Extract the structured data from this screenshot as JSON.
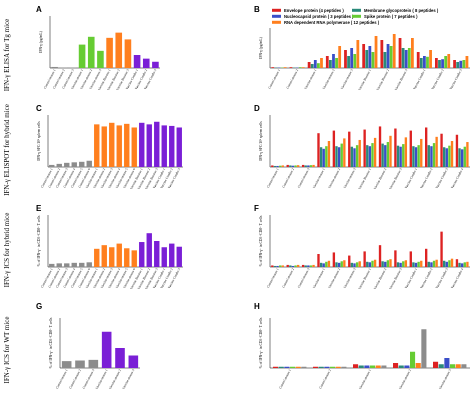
{
  "row_labels": [
    "IFN-γ ELISA for Tg mice",
    "IFN-γ ELISPOT for hybrid mice",
    "IFN-γ ICS for hybrid mice",
    "IFN-γ ICS for WT mice"
  ],
  "panel_letters": [
    "A",
    "B",
    "C",
    "D",
    "E",
    "F",
    "G",
    "H"
  ],
  "colors": {
    "grey": "#8c8c8c",
    "green": "#66cc33",
    "orange": "#ff7f1e",
    "purple": "#7a1fd6",
    "red": "#dd2222",
    "teal": "#2a8a7a",
    "blue": "#3a4ec8",
    "yellow": "#d8c000"
  },
  "legend": {
    "items": [
      {
        "label": "Envelope protein (4 peptides )",
        "color": "#dd2222"
      },
      {
        "label": "Membrane glycoprotein ( 8 peptides )",
        "color": "#2a8a7a"
      },
      {
        "label": "Nucleocapsid protein ( 3 peptides )",
        "color": "#3a4ec8"
      },
      {
        "label": "Spike protein ( 7 peptides )",
        "color": "#66cc33"
      },
      {
        "label": "RNA dependent RNA polymerase ( 12 peptides )",
        "color": "#ff7f1e"
      }
    ]
  },
  "chart_data": [
    {
      "id": "A",
      "type": "bar",
      "ylabel": "IFN-γ (pg/mL)",
      "ylim": [
        0,
        100
      ],
      "categories": [
        "Control-mouse 1",
        "Control-mouse 2",
        "Control-mouse 3",
        "Vaccine-mouse 1",
        "Vaccine-mouse 2",
        "Vaccine-mouse 3",
        "Vaccine Booster 1",
        "Vaccine Booster 2",
        "Vaccine Booster 3",
        "Vaccine Combo 1",
        "Vaccine Combo 2",
        "Vaccine Combo 3"
      ],
      "values": [
        2,
        1,
        1,
        45,
        60,
        33,
        58,
        68,
        55,
        25,
        18,
        12
      ],
      "bar_colors": [
        "grey",
        "grey",
        "grey",
        "green",
        "green",
        "green",
        "orange",
        "orange",
        "orange",
        "purple",
        "purple",
        "purple"
      ]
    },
    {
      "id": "B",
      "type": "bar",
      "ylabel": "IFN-γ (pg/mL)",
      "ylim": [
        0,
        100
      ],
      "categories": [
        "Control-mouse 1",
        "Control-mouse 2",
        "Vaccine-mouse 1",
        "Vaccine-mouse 2",
        "Vaccine-mouse 3",
        "Vaccine Booster 1",
        "Vaccine Booster 2",
        "Vaccine Booster 3",
        "Vaccine Combo 1",
        "Vaccine Combo 2",
        "Vaccine Combo 3"
      ],
      "series": [
        {
          "name": "Envelope protein (4 peptides )",
          "color": "red",
          "values": [
            2,
            2,
            15,
            30,
            45,
            60,
            70,
            75,
            40,
            25,
            20
          ]
        },
        {
          "name": "Membrane glycoprotein ( 8 peptides )",
          "color": "teal",
          "values": [
            1,
            1,
            10,
            20,
            30,
            45,
            40,
            50,
            25,
            20,
            15
          ]
        },
        {
          "name": "Nucleocapsid protein ( 3 peptides )",
          "color": "blue",
          "values": [
            1,
            1,
            20,
            35,
            50,
            55,
            60,
            45,
            30,
            22,
            18
          ]
        },
        {
          "name": "Spike protein ( 7 peptides )",
          "color": "green",
          "values": [
            1,
            2,
            12,
            25,
            35,
            40,
            55,
            50,
            28,
            30,
            20
          ]
        },
        {
          "name": "RNA dependent RNA polymerase ( 12 peptides )",
          "color": "orange",
          "values": [
            2,
            2,
            25,
            55,
            70,
            80,
            85,
            75,
            45,
            35,
            30
          ]
        }
      ]
    },
    {
      "id": "C",
      "type": "bar",
      "ylabel": "IFN-γ SFC/10⁶ spleen cells",
      "ylim": [
        0,
        1000
      ],
      "categories": [
        "Control-mouse 1",
        "Control-mouse 2",
        "Control-mouse 3",
        "Control-mouse 4",
        "Control-mouse 5",
        "Control-mouse 6",
        "Vaccine-mouse 1",
        "Vaccine-mouse 2",
        "Vaccine-mouse 3",
        "Vaccine-mouse 4",
        "Vaccine-mouse 5",
        "Vaccine-mouse 6",
        "Vaccine Booster 1",
        "Vaccine Booster 2",
        "Vaccine Booster 3",
        "Vaccine Combo 1",
        "Vaccine Combo 2",
        "Vaccine Combo 3"
      ],
      "values": [
        40,
        60,
        80,
        90,
        100,
        120,
        820,
        780,
        850,
        800,
        830,
        760,
        850,
        820,
        870,
        800,
        790,
        760
      ],
      "bar_colors": [
        "grey",
        "grey",
        "grey",
        "grey",
        "grey",
        "grey",
        "orange",
        "orange",
        "orange",
        "orange",
        "orange",
        "orange",
        "purple",
        "purple",
        "purple",
        "purple",
        "purple",
        "purple"
      ]
    },
    {
      "id": "D",
      "type": "bar",
      "ylabel": "IFN-γ SFC/10⁶ spleen cells",
      "ylim": [
        0,
        1000
      ],
      "categories": [
        "Control-mouse 1",
        "Control-mouse 2",
        "Control-mouse 3",
        "Vaccine-mouse 1",
        "Vaccine-mouse 2",
        "Vaccine-mouse 3",
        "Vaccine Booster 1",
        "Vaccine Booster 2",
        "Vaccine Booster 3",
        "Vaccine Combo 1",
        "Vaccine Combo 2",
        "Vaccine Combo 3",
        "Vaccine Combo 4"
      ],
      "series": [
        {
          "name": "Envelope protein (4 peptides )",
          "color": "red",
          "values": [
            30,
            40,
            40,
            650,
            700,
            680,
            720,
            780,
            740,
            700,
            760,
            640,
            620
          ]
        },
        {
          "name": "Membrane glycoprotein ( 8 peptides )",
          "color": "teal",
          "values": [
            20,
            30,
            30,
            380,
            400,
            390,
            420,
            450,
            410,
            400,
            420,
            380,
            360
          ]
        },
        {
          "name": "Nucleocapsid protein ( 3 peptides )",
          "color": "blue",
          "values": [
            20,
            25,
            30,
            350,
            380,
            360,
            400,
            420,
            390,
            380,
            400,
            360,
            340
          ]
        },
        {
          "name": "Spike protein ( 7 peptides )",
          "color": "green",
          "values": [
            25,
            30,
            35,
            400,
            450,
            420,
            460,
            480,
            440,
            420,
            460,
            410,
            390
          ]
        },
        {
          "name": "RNA dependent RNA polymerase ( 12 peptides )",
          "color": "orange",
          "values": [
            30,
            35,
            40,
            500,
            550,
            520,
            560,
            600,
            570,
            540,
            580,
            500,
            480
          ]
        }
      ]
    },
    {
      "id": "E",
      "type": "bar",
      "ylabel": "% of IFN-γ⁺ in CD3⁺CD8⁺ T cells",
      "ylim": [
        0,
        10
      ],
      "categories": [
        "Control-mouse 1",
        "Control-mouse 2",
        "Control-mouse 3",
        "Control-mouse 4",
        "Control-mouse 5",
        "Control-mouse 6",
        "Vaccine-mouse 1",
        "Vaccine-mouse 2",
        "Vaccine-mouse 3",
        "Vaccine-mouse 4",
        "Vaccine-mouse 5",
        "Vaccine-mouse 6",
        "Vaccine Booster 1",
        "Vaccine Booster 2",
        "Vaccine Booster 3",
        "Vaccine Combo 1",
        "Vaccine Combo 2",
        "Vaccine Combo 3"
      ],
      "values": [
        0.6,
        0.7,
        0.7,
        0.8,
        0.8,
        0.9,
        3.5,
        4.2,
        3.8,
        4.5,
        3.6,
        3.2,
        4.8,
        6.5,
        5.0,
        3.8,
        4.5,
        3.9
      ],
      "bar_colors": [
        "grey",
        "grey",
        "grey",
        "grey",
        "grey",
        "grey",
        "orange",
        "orange",
        "orange",
        "orange",
        "orange",
        "orange",
        "purple",
        "purple",
        "purple",
        "purple",
        "purple",
        "purple"
      ]
    },
    {
      "id": "F",
      "type": "bar",
      "ylabel": "% of IFN-γ⁺ in CD3⁺CD8⁺ T cells",
      "ylim": [
        0,
        10
      ],
      "categories": [
        "Control-mouse 1",
        "Control-mouse 2",
        "Control-mouse 3",
        "Vaccine-mouse 1",
        "Vaccine-mouse 2",
        "Vaccine-mouse 3",
        "Vaccine Booster 1",
        "Vaccine Booster 2",
        "Vaccine Booster 3",
        "Vaccine Combo 1",
        "Vaccine Combo 2",
        "Vaccine Combo 3",
        "Vaccine Combo 4"
      ],
      "series": [
        {
          "name": "Envelope protein (4 peptides )",
          "color": "red",
          "values": [
            0.3,
            0.4,
            0.4,
            2.5,
            2.8,
            2.2,
            3.0,
            4.2,
            3.2,
            3.0,
            3.5,
            6.8,
            1.5
          ]
        },
        {
          "name": "Membrane glycoprotein ( 8 peptides )",
          "color": "teal",
          "values": [
            0.2,
            0.3,
            0.3,
            0.8,
            0.9,
            0.8,
            1.0,
            1.1,
            0.9,
            0.9,
            1.0,
            1.2,
            0.8
          ]
        },
        {
          "name": "Nucleocapsid protein ( 3 peptides )",
          "color": "blue",
          "values": [
            0.2,
            0.2,
            0.3,
            0.7,
            0.8,
            0.7,
            0.9,
            1.0,
            0.8,
            0.8,
            0.9,
            1.0,
            0.7
          ]
        },
        {
          "name": "Spike protein ( 7 peptides )",
          "color": "green",
          "values": [
            0.3,
            0.3,
            0.3,
            1.0,
            1.1,
            0.9,
            1.2,
            1.3,
            1.1,
            1.0,
            1.2,
            1.3,
            0.9
          ]
        },
        {
          "name": "RNA dependent RNA polymerase ( 12 peptides )",
          "color": "orange",
          "values": [
            0.3,
            0.4,
            0.4,
            1.2,
            1.3,
            1.1,
            1.4,
            1.5,
            1.3,
            1.2,
            1.4,
            1.6,
            1.0
          ]
        }
      ]
    },
    {
      "id": "G",
      "type": "bar",
      "ylabel": "% of IFN-γ⁺ in CD3⁺CD8⁺ T cells",
      "ylim": [
        0,
        4
      ],
      "categories": [
        "Control-mouse 1",
        "Control-mouse 2",
        "Control-mouse 3",
        "Vaccine-mouse 1",
        "Vaccine-mouse 2",
        "Vaccine-mouse 3"
      ],
      "values": [
        0.55,
        0.6,
        0.65,
        2.9,
        1.6,
        1.0
      ],
      "bar_colors": [
        "grey",
        "grey",
        "grey",
        "purple",
        "purple",
        "purple"
      ]
    },
    {
      "id": "H",
      "type": "bar",
      "ylabel": "% of IFN-γ⁺ in CD3⁺CD8⁺ T cells",
      "ylim": [
        0,
        4
      ],
      "categories": [
        "Control-mouse 1",
        "Control-mouse 2",
        "Vaccine-mouse 1",
        "Vaccine-mouse 2",
        "Vaccine-mouse 3"
      ],
      "series": [
        {
          "name": "Envelope protein (4 peptides )",
          "color": "red",
          "values": [
            0.1,
            0.1,
            0.3,
            0.4,
            0.5
          ]
        },
        {
          "name": "Membrane glycoprotein ( 8 peptides )",
          "color": "teal",
          "values": [
            0.1,
            0.1,
            0.2,
            0.2,
            0.3
          ]
        },
        {
          "name": "Nucleocapsid protein ( 3 peptides )",
          "color": "blue",
          "values": [
            0.1,
            0.1,
            0.2,
            0.2,
            0.8
          ]
        },
        {
          "name": "Spike protein ( 7 peptides )",
          "color": "green",
          "values": [
            0.1,
            0.1,
            0.2,
            1.3,
            0.3
          ]
        },
        {
          "name": "RNA dependent RNA polymerase ( 12 peptides )",
          "color": "orange",
          "values": [
            0.1,
            0.1,
            0.2,
            0.4,
            0.3
          ]
        }
      ],
      "extra_series": {
        "color": "grey",
        "values": [
          0.1,
          0.1,
          0.2,
          3.1,
          0.3
        ]
      }
    }
  ]
}
